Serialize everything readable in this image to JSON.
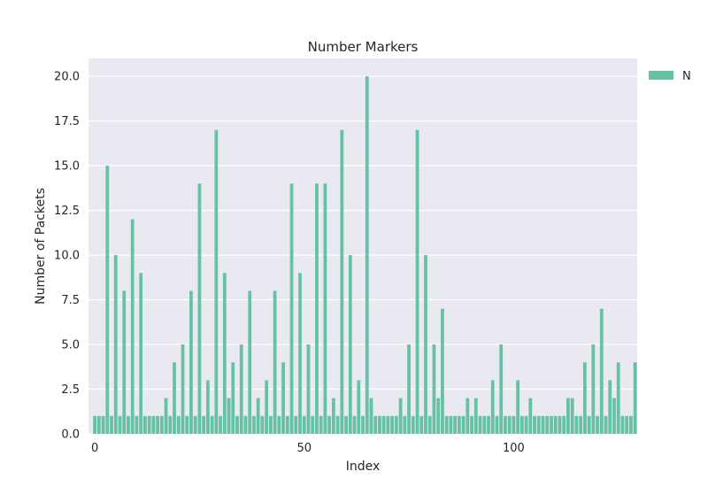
{
  "chart_data": {
    "type": "bar",
    "title": "Number Markers",
    "xlabel": "Index",
    "ylabel": "Number of Packets",
    "x_start": 0,
    "values": [
      1,
      1,
      1,
      15,
      1,
      10,
      1,
      8,
      1,
      12,
      1,
      9,
      1,
      1,
      1,
      1,
      1,
      2,
      1,
      4,
      1,
      5,
      1,
      8,
      1,
      14,
      1,
      3,
      1,
      17,
      1,
      9,
      2,
      4,
      1,
      5,
      1,
      8,
      1,
      2,
      1,
      3,
      1,
      8,
      1,
      4,
      1,
      14,
      1,
      9,
      1,
      5,
      1,
      14,
      1,
      14,
      1,
      2,
      1,
      17,
      1,
      10,
      1,
      3,
      1,
      20,
      2,
      1,
      1,
      1,
      1,
      1,
      1,
      2,
      1,
      5,
      1,
      17,
      1,
      10,
      1,
      5,
      2,
      7,
      1,
      1,
      1,
      1,
      1,
      2,
      1,
      2,
      1,
      1,
      1,
      3,
      1,
      5,
      1,
      1,
      1,
      3,
      1,
      1,
      2,
      1,
      1,
      1,
      1,
      1,
      1,
      1,
      1,
      2,
      2,
      1,
      1,
      4,
      1,
      5,
      1,
      7,
      1,
      3,
      2,
      4,
      1,
      1,
      1,
      4
    ],
    "xlim": [
      -1.5,
      129.5
    ],
    "ylim": [
      0,
      21
    ],
    "xticks": [
      0,
      50,
      100
    ],
    "yticks": [
      0.0,
      2.5,
      5.0,
      7.5,
      10.0,
      12.5,
      15.0,
      17.5,
      20.0
    ],
    "legend": {
      "entries": [
        "N"
      ],
      "placement": "outside-right-top"
    },
    "grid": true,
    "colors": {
      "bar": "#66c2a5",
      "plot_bg": "#e9e9f1",
      "grid": "#ffffff",
      "text": "#262626"
    }
  }
}
